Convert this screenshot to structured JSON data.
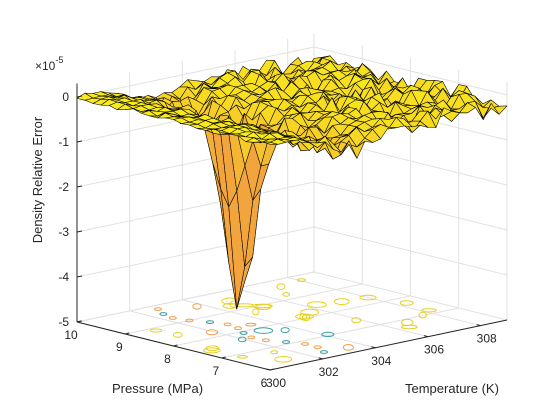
{
  "chart_data": {
    "type": "surface3d",
    "zlabel": "Density Relative Error",
    "xlabel": "Pressure (MPa)",
    "ylabel": "Temperature (K)",
    "z_exponent_base": "×10",
    "z_exponent_power": "-5",
    "x_ticks": [
      10,
      9,
      8,
      7,
      6
    ],
    "y_ticks": [
      300,
      302,
      304,
      306,
      308
    ],
    "z_ticks": [
      0,
      -1,
      -2,
      -3,
      -4,
      -5
    ],
    "xlim": [
      6,
      10
    ],
    "ylim": [
      300,
      309
    ],
    "zlim": [
      -5,
      0.3
    ],
    "grid": true,
    "colors": {
      "surface_high": "#f9eb19",
      "surface_low": "#f2a53c",
      "edge": "#000000",
      "contour_yellow": "#e6d21e",
      "contour_orange": "#f0a050",
      "contour_teal": "#3ca0a0"
    },
    "features": {
      "baseline_z": 0.0,
      "deep_spike": {
        "pressure": 8.0,
        "temperature": 302.5,
        "z": -4.2
      },
      "noisy_band_temperature": [
        302,
        304
      ]
    }
  }
}
